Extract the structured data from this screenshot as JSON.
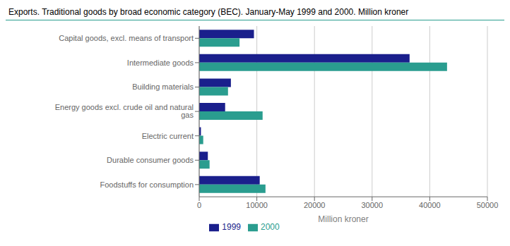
{
  "chart_data": {
    "type": "bar",
    "title": "Exports. Traditional goods by broad economic category (BEC). January-May 1999 and 2000. Million kroner",
    "orientation": "horizontal",
    "categories": [
      "Capital goods, excl. means of transport",
      "Intermediate goods",
      "Building materials",
      "Energy goods excl. crude oil and natural gas",
      "Electric current",
      "Durable consumer goods",
      "Foodstuffs for consumption"
    ],
    "series": [
      {
        "name": "1999",
        "color": "#1a1f8c",
        "values": [
          9500,
          36500,
          5500,
          4500,
          300,
          1500,
          10500
        ]
      },
      {
        "name": "2000",
        "color": "#2a9d8f",
        "values": [
          7000,
          43000,
          5000,
          11000,
          700,
          1800,
          11500
        ]
      }
    ],
    "xlabel": "Million kroner",
    "xlim": [
      0,
      50000
    ],
    "xticks": [
      0,
      10000,
      20000,
      30000,
      40000,
      50000
    ],
    "grid": true,
    "legend": "bottom"
  }
}
